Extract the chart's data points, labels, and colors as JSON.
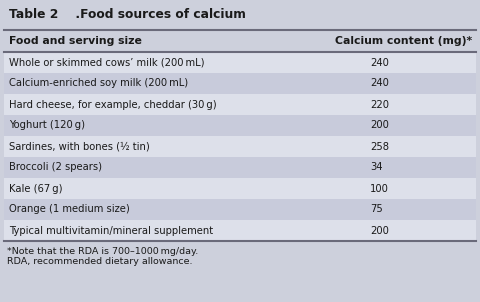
{
  "title": "Table 2    .Food sources of calcium",
  "col1_header": "Food and serving size",
  "col2_header": "Calcium content (mg)*",
  "rows": [
    [
      "Whole or skimmed cows’ milk (200 mL)",
      "240"
    ],
    [
      "Calcium-enriched soy milk (200 mL)",
      "240"
    ],
    [
      "Hard cheese, for example, cheddar (30 g)",
      "220"
    ],
    [
      "Yoghurt (120 g)",
      "200"
    ],
    [
      "Sardines, with bones (½ tin)",
      "258"
    ],
    [
      "Broccoli (2 spears)",
      "34"
    ],
    [
      "Kale (67 g)",
      "100"
    ],
    [
      "Orange (1 medium size)",
      "75"
    ],
    [
      "Typical multivitamin/mineral supplement",
      "200"
    ]
  ],
  "footnote1": "*Note that the RDA is 700–1000 mg/day.",
  "footnote2": "RDA, recommended dietary allowance.",
  "bg_color": "#cdd0dc",
  "row_light_color": "#dde0ea",
  "row_dark_color": "#c8cbdb",
  "title_bg_color": "#cdd0dc",
  "border_color": "#6a6a7a",
  "text_color": "#1a1a1a",
  "font_size": 7.2,
  "header_font_size": 7.8,
  "title_font_size": 8.8,
  "footnote_font_size": 6.8
}
